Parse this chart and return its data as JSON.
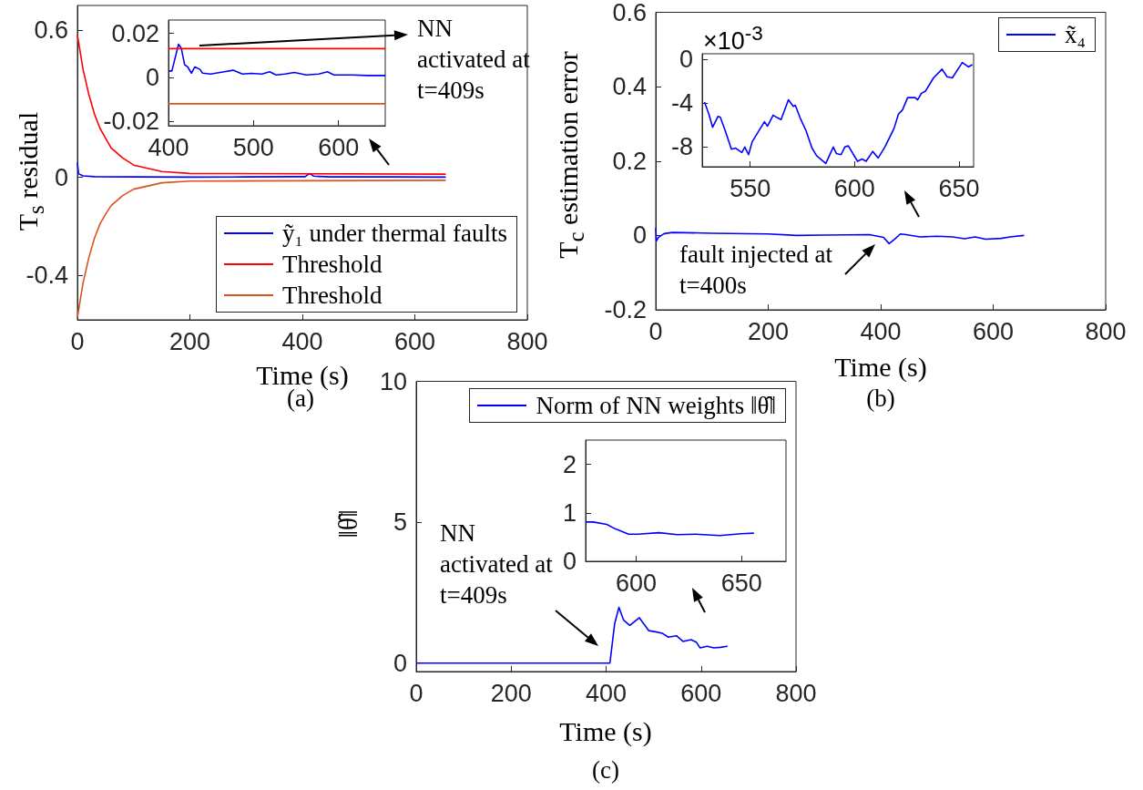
{
  "chart_data": [
    {
      "type": "line",
      "xlabel": "Time (s)",
      "ylabel": "T$_{s}$ residual",
      "xlim": [
        0,
        800
      ],
      "xticks": [
        0,
        200,
        400,
        600,
        800
      ],
      "ylim": [
        -0.58,
        0.7
      ],
      "yticks": [
        -0.4,
        0,
        0.6
      ],
      "legend": "bottom right",
      "marker": "none",
      "annotations": [
        "NN activated at t=409s",
        "(a)"
      ],
      "series": [
        {
          "name": "ỹ₁ under thermal faults",
          "color": "#0000ff",
          "x": [
            0,
            2,
            10,
            30,
            100,
            200,
            300,
            400,
            405,
            412,
            416,
            420,
            430,
            450,
            550,
            655
          ],
          "values": [
            0.06,
            0.015,
            0.006,
            0.003,
            0.002,
            0.001,
            0.002,
            0.003,
            0.003,
            0.015,
            0.012,
            0.005,
            0.004,
            0.002,
            0.002,
            0.001
          ]
        },
        {
          "name": "Threshold",
          "color": "#ff0000",
          "x": [
            0,
            10,
            20,
            30,
            40,
            50,
            60,
            80,
            100,
            150,
            200,
            655
          ],
          "values": [
            0.58,
            0.44,
            0.34,
            0.26,
            0.2,
            0.16,
            0.12,
            0.08,
            0.05,
            0.024,
            0.016,
            0.013
          ]
        },
        {
          "name": "Threshold",
          "color": "#d95319",
          "x": [
            0,
            10,
            20,
            30,
            40,
            50,
            60,
            80,
            100,
            150,
            200,
            655
          ],
          "values": [
            -0.57,
            -0.43,
            -0.33,
            -0.25,
            -0.19,
            -0.15,
            -0.115,
            -0.075,
            -0.048,
            -0.022,
            -0.015,
            -0.012
          ]
        }
      ]
    },
    {
      "type": "line",
      "xlim": [
        400,
        655
      ],
      "xticks": [
        400,
        500,
        600
      ],
      "ylim": [
        -0.022,
        0.026
      ],
      "yticks": [
        -0.02,
        0,
        0.02
      ],
      "marker": "none",
      "series": [
        {
          "color": "#0000ff",
          "x": [
            400,
            404,
            411.8,
            415,
            419,
            422.6,
            427,
            431,
            437,
            440,
            449.5,
            465.6,
            476,
            487,
            497,
            510,
            519,
            526.5,
            537,
            548,
            562,
            576.7,
            587,
            594.6,
            616,
            634,
            650,
            655
          ],
          "values": [
            0.0029,
            0.0029,
            0.015,
            0.0133,
            0.0057,
            0.0047,
            0.0019,
            0.0047,
            0.0036,
            0.0019,
            0.0015,
            0.0025,
            0.0032,
            0.0015,
            0.0018,
            0.0015,
            0.0025,
            0.0011,
            0.0015,
            0.0022,
            0.0011,
            0.0015,
            0.0025,
            0.0011,
            0.0011,
            0.0008,
            0.0008,
            0.0008
          ]
        },
        {
          "color": "#ff0000",
          "x": [
            400,
            655
          ],
          "values": [
            0.013,
            0.013
          ]
        },
        {
          "color": "#d95319",
          "x": [
            400,
            655
          ],
          "values": [
            -0.012,
            -0.012
          ]
        }
      ]
    },
    {
      "type": "line",
      "xlabel": "Time (s)",
      "ylabel": "T$_{c}$ estimation error",
      "xlim": [
        0,
        800
      ],
      "xticks": [
        0,
        200,
        400,
        600,
        800
      ],
      "ylim": [
        -0.2,
        0.6
      ],
      "yticks": [
        -0.2,
        0,
        0.2,
        0.4,
        0.6
      ],
      "legend": "top right",
      "marker": "none",
      "annotations": [
        "fault injected at t=400s",
        "(b)"
      ],
      "series": [
        {
          "name": "x̃₄",
          "color": "#0000ff",
          "x": [
            0,
            1,
            5,
            15,
            30,
            100,
            200,
            250,
            300,
            380,
            405,
            415,
            425,
            435,
            445,
            470,
            500,
            528,
            549,
            568,
            586,
            614,
            630,
            655
          ],
          "values": [
            0.02,
            -0.015,
            -0.005,
            0.005,
            0.008,
            0.006,
            0.004,
            0,
            0.001,
            0.002,
            -0.005,
            -0.022,
            -0.01,
            0.004,
            0.002,
            -0.004,
            -0.002,
            -0.004,
            -0.009,
            -0.004,
            -0.01,
            -0.008,
            -0.004,
            0
          ]
        }
      ]
    },
    {
      "type": "line",
      "xlim": [
        527,
        657
      ],
      "xticks": [
        550,
        600,
        650
      ],
      "ylim": [
        -9.8,
        0.5
      ],
      "yticks": [
        -8,
        -4,
        0
      ],
      "marker": "none",
      "annotations": [
        "×10$^{-3}$"
      ],
      "series": [
        {
          "color": "#0000ff",
          "x": [
            528.1,
            530.2,
            532,
            534.6,
            535.7,
            538,
            541,
            543,
            546,
            547.4,
            549.2,
            551,
            556.8,
            558.3,
            561,
            562.7,
            564.8,
            568.3,
            570.6,
            571.6,
            573.8,
            576.7,
            579.6,
            581.8,
            586.2,
            589.8,
            591.3,
            593.5,
            595.3,
            597,
            601.4,
            603.6,
            605.5,
            608.7,
            611.3,
            614.5,
            618.9,
            621,
            623,
            625.4,
            627.6,
            629,
            630.2,
            632,
            634,
            637.8,
            641.9,
            644.3,
            646.8,
            651.6,
            654.5,
            656.4
          ],
          "values": [
            -3.9,
            -5,
            -6.2,
            -5.2,
            -5.3,
            -6.5,
            -8.2,
            -8.1,
            -8.5,
            -8,
            -8.7,
            -7.5,
            -5.7,
            -6.1,
            -5.1,
            -5.3,
            -5.5,
            -3.7,
            -4.3,
            -4.2,
            -5.3,
            -6.5,
            -8.1,
            -8.8,
            -9.5,
            -8,
            -8.6,
            -8.7,
            -8,
            -7.9,
            -9.3,
            -9.1,
            -9.3,
            -8.4,
            -9,
            -8,
            -6.3,
            -5,
            -4.6,
            -3.5,
            -3.5,
            -3.5,
            -3.7,
            -3.1,
            -2.9,
            -1.7,
            -0.9,
            -1.6,
            -1.7,
            -0.3,
            -0.7,
            -0.5
          ]
        }
      ]
    },
    {
      "type": "line",
      "xlabel": "Time (s)",
      "ylabel": "‖θ̂‖",
      "xlim": [
        0,
        800
      ],
      "xticks": [
        0,
        200,
        400,
        600,
        800
      ],
      "ylim": [
        -0.3,
        10
      ],
      "yticks": [
        0,
        5,
        10
      ],
      "legend": "top right",
      "marker": "none",
      "annotations": [
        "NN activated at t=409s",
        "(c)"
      ],
      "series": [
        {
          "name": "Norm of NN weights ‖θ̂‖",
          "color": "#0000ff",
          "x": [
            0,
            408,
            418,
            427,
            437,
            450,
            470,
            490,
            504,
            518,
            531,
            548,
            562,
            579,
            590,
            598,
            613,
            627,
            641,
            656
          ],
          "values": [
            0,
            0,
            1.4,
            1.98,
            1.52,
            1.34,
            1.61,
            1.15,
            1.11,
            1.06,
            0.92,
            0.97,
            0.77,
            0.83,
            0.74,
            0.54,
            0.6,
            0.54,
            0.56,
            0.6
          ]
        }
      ]
    },
    {
      "type": "line",
      "xlim": [
        576,
        671
      ],
      "xticks": [
        600,
        650
      ],
      "ylim": [
        0,
        2.5
      ],
      "yticks": [
        0,
        1,
        2
      ],
      "marker": "none",
      "series": [
        {
          "color": "#0000ff",
          "x": [
            576,
            579.6,
            586,
            590,
            596.4,
            600.7,
            610.8,
            619.5,
            628.2,
            639.6,
            649.7,
            655.8
          ],
          "values": [
            0.81,
            0.81,
            0.76,
            0.67,
            0.56,
            0.56,
            0.59,
            0.55,
            0.56,
            0.53,
            0.57,
            0.58
          ]
        }
      ]
    }
  ]
}
